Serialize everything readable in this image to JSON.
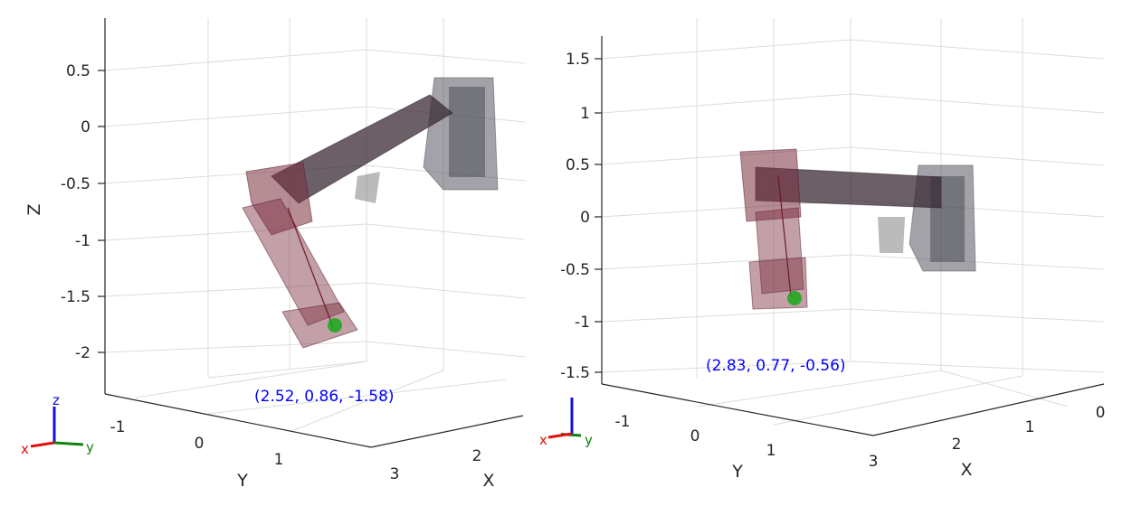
{
  "colors": {
    "background": "#ffffff",
    "axis": "#262626",
    "grid": "#dcdcdc",
    "arm_dark": "#3a2a36",
    "arm_red": "#7a2d3e",
    "base_gray": "#555560",
    "marker": "#18a818",
    "coord_text": "#0000ff",
    "triad_x": "#e01010",
    "triad_y": "#108010",
    "triad_z": "#1010e0"
  },
  "left": {
    "z_label": "Z",
    "y_label": "Y",
    "x_label": "X",
    "z_ticks": [
      "0.5",
      "0",
      "-0.5",
      "-1",
      "-1.5",
      "-2"
    ],
    "y_ticks": [
      "-1",
      "0",
      "1"
    ],
    "x_ticks": [
      "2",
      "3"
    ],
    "coord": "(2.52, 0.86, -1.58)",
    "triad": {
      "x": "x",
      "y": "y",
      "z": "z"
    }
  },
  "right": {
    "z_label": "Z",
    "y_label": "Y",
    "x_label": "X",
    "z_ticks": [
      "1.5",
      "1",
      "0.5",
      "0",
      "-0.5",
      "-1",
      "-1.5"
    ],
    "y_ticks": [
      "-1",
      "0",
      "1"
    ],
    "x_ticks": [
      "3",
      "2",
      "1",
      "0"
    ],
    "coord": "(2.83, 0.77, -0.56)",
    "triad": {
      "x": "x",
      "y": "y",
      "z": "z"
    }
  }
}
